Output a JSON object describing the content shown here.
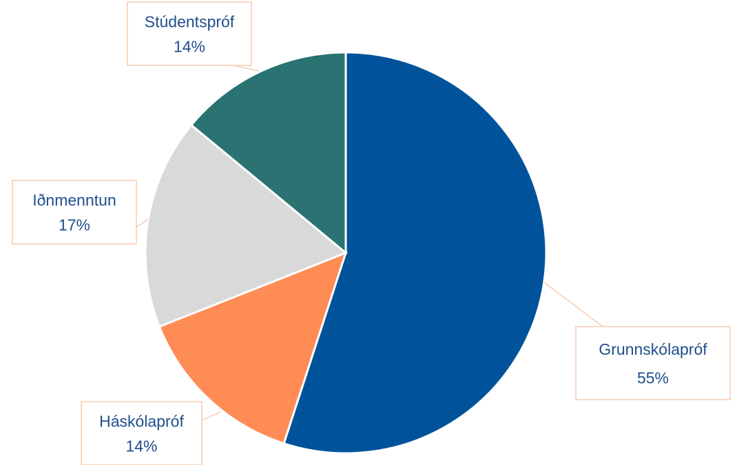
{
  "chart_data": {
    "type": "pie",
    "categories": [
      "Grunnskólapróf",
      "Háskólapróf",
      "Iðnmenntun",
      "Stúdentspróf"
    ],
    "values": [
      55,
      14,
      17,
      14
    ],
    "value_labels": [
      "55%",
      "14%",
      "17%",
      "14%"
    ],
    "colors": [
      "#00539b",
      "#ff8c55",
      "#d9d9d9",
      "#2a7372"
    ]
  }
}
